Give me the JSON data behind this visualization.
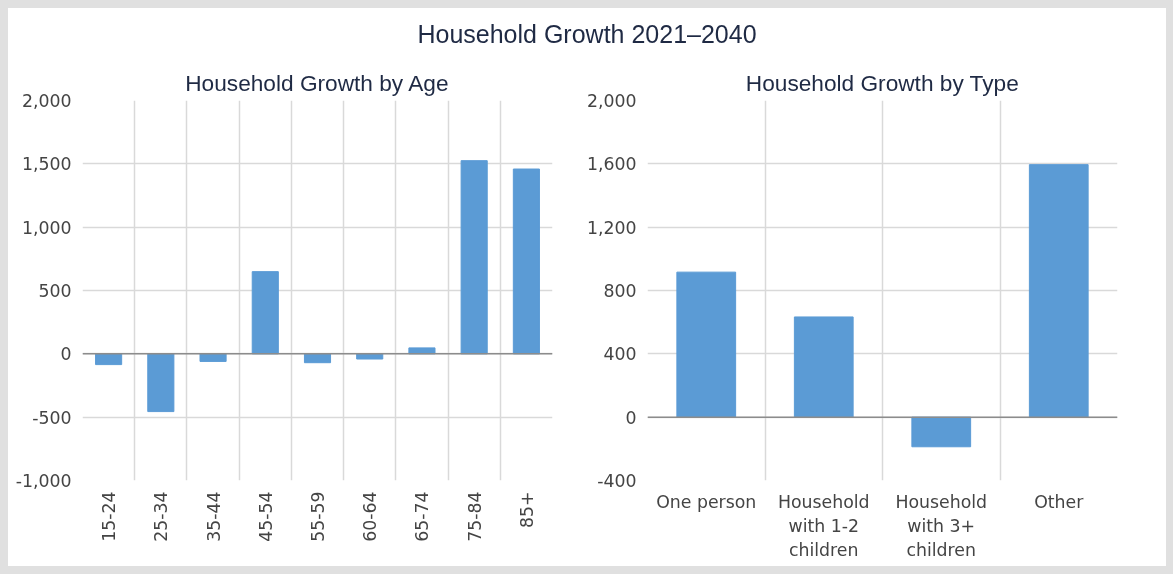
{
  "chart_data": [
    {
      "type": "bar",
      "title": "Household Growth by Age",
      "annotations": [
        "Household Growth 2021–2040"
      ],
      "categories": [
        "15-24",
        "25-34",
        "35-44",
        "45-54",
        "55-59",
        "60-64",
        "65-74",
        "75-84",
        "85+"
      ],
      "values": [
        -85,
        -456,
        -60,
        649,
        -70,
        -41,
        47,
        1525,
        1459
      ],
      "color": "#5b9bd5",
      "ylim": [
        -1000,
        2000
      ],
      "yticks": [
        {
          "value": -1000,
          "label": "-1,000"
        },
        {
          "value": -500,
          "label": "-500"
        },
        0,
        500,
        {
          "value": 1000,
          "label": "1,000"
        },
        {
          "value": 1500,
          "label": "1,500"
        },
        {
          "value": 2000,
          "label": "2,000"
        }
      ],
      "ref_lines": [
        {
          "axis": "y",
          "value": 0,
          "color": "#8c8c8c"
        }
      ],
      "grid": true
    },
    {
      "type": "bar",
      "title": "Household Growth by Type",
      "categories": [
        "One person",
        "Household\nwith 1-2\nchildren",
        "Household\nwith 3+\nchildren",
        "Other"
      ],
      "values": [
        916,
        633,
        -187,
        1595
      ],
      "color": "#5b9bd5",
      "ylim": [
        -400,
        2000
      ],
      "yticks": [
        {
          "value": -400,
          "label": "-400"
        },
        0,
        400,
        800,
        {
          "value": 1200,
          "label": "1,200"
        },
        {
          "value": 1600,
          "label": "1,600"
        },
        {
          "value": 2000,
          "label": "2,000"
        }
      ],
      "ref_lines": [
        {
          "axis": "y",
          "value": 0,
          "color": "#8c8c8c"
        }
      ],
      "grid": true
    }
  ]
}
